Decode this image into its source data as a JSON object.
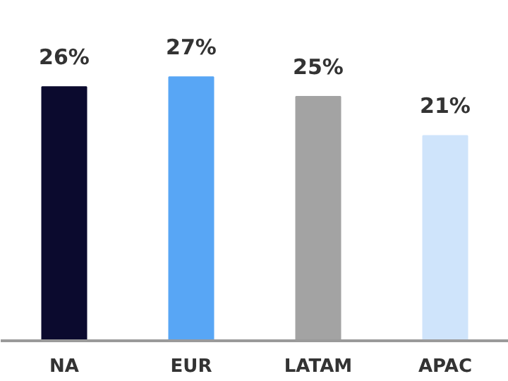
{
  "chart_data": {
    "type": "bar",
    "categories": [
      "NA",
      "EUR",
      "LATAM",
      "APAC"
    ],
    "values": [
      26,
      27,
      25,
      21
    ],
    "colors": [
      "#0b0a2e",
      "#58a6f5",
      "#a3a3a3",
      "#cfe4fb"
    ],
    "value_labels": [
      "26%",
      "27%",
      "25%",
      "21%"
    ],
    "grid": false
  }
}
